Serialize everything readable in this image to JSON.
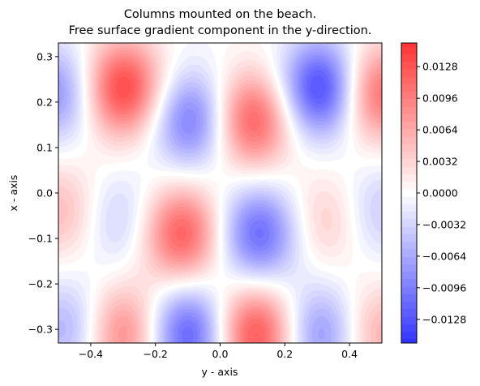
{
  "chart_data": {
    "type": "heatmap",
    "title": [
      "Columns mounted on the beach.",
      "Free surface gradient component in the y-direction."
    ],
    "xlabel": "y - axis",
    "ylabel": "x - axis",
    "xlim": [
      -0.5,
      0.5
    ],
    "ylim": [
      -0.33,
      0.33
    ],
    "xticks": [
      -0.4,
      -0.2,
      0.0,
      0.2,
      0.4
    ],
    "xtick_labels": [
      "−0.4",
      "−0.2",
      "0.0",
      "0.2",
      "0.4"
    ],
    "yticks": [
      -0.3,
      -0.2,
      -0.1,
      0.0,
      0.1,
      0.2,
      0.3
    ],
    "ytick_labels": [
      "−0.3",
      "−0.2",
      "−0.1",
      "0.0",
      "0.1",
      "0.2",
      "0.3"
    ],
    "colormap": "bwr",
    "colormap_colors": [
      "#3333ff",
      "#ffffff",
      "#ff3333"
    ],
    "color_range": [
      -0.0152,
      0.0152
    ],
    "colorbar_ticks": [
      0.0128,
      0.0096,
      0.0064,
      0.0032,
      0.0,
      -0.0032,
      -0.0064,
      -0.0096,
      -0.0128
    ],
    "colorbar_labels": [
      "0.0128",
      "0.0096",
      "0.0064",
      "0.0032",
      "0.0000",
      "−0.0032",
      "−0.0064",
      "−0.0096",
      "−0.0128"
    ],
    "features": [
      {
        "y": -0.5,
        "x": 0.22,
        "value": -0.008
      },
      {
        "y": -0.3,
        "x": 0.23,
        "value": 0.014
      },
      {
        "y": -0.09,
        "x": 0.16,
        "value": -0.01
      },
      {
        "y": 0.1,
        "x": 0.16,
        "value": 0.012
      },
      {
        "y": 0.31,
        "x": 0.23,
        "value": -0.014
      },
      {
        "y": 0.49,
        "x": 0.22,
        "value": 0.011
      },
      {
        "y": -0.49,
        "x": -0.04,
        "value": 0.005
      },
      {
        "y": -0.31,
        "x": -0.06,
        "value": -0.004
      },
      {
        "y": -0.12,
        "x": -0.09,
        "value": 0.012
      },
      {
        "y": 0.12,
        "x": -0.09,
        "value": -0.011
      },
      {
        "y": 0.33,
        "x": -0.06,
        "value": 0.004
      },
      {
        "y": 0.49,
        "x": -0.04,
        "value": -0.004
      },
      {
        "y": -0.47,
        "x": -0.3,
        "value": -0.006
      },
      {
        "y": -0.3,
        "x": -0.31,
        "value": 0.009
      },
      {
        "y": -0.1,
        "x": -0.31,
        "value": -0.012
      },
      {
        "y": 0.11,
        "x": -0.31,
        "value": 0.013
      },
      {
        "y": 0.31,
        "x": -0.31,
        "value": -0.008
      },
      {
        "y": 0.49,
        "x": -0.31,
        "value": 0.006
      }
    ]
  }
}
